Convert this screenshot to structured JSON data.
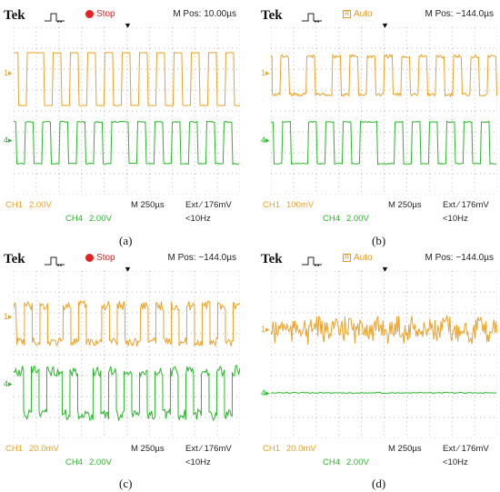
{
  "panels": [
    {
      "id": "a",
      "brand": "Tek",
      "status": "Stop",
      "status_kind": "dot",
      "status_color": "#e32222",
      "mpos": "M Pos: 10.00µs",
      "ch1_label": "CH1",
      "ch1_scale": "2.00V",
      "ch4_label": "CH4",
      "ch4_scale": "2.00V",
      "timebase": "M 250µs",
      "trigger": "Ext ∕ 176mV",
      "freq": "<10Hz",
      "marker1": "1▸",
      "marker4": "4▸",
      "caption": "(a)",
      "ch1_style": "clean",
      "ch4_style": "clean"
    },
    {
      "id": "b",
      "brand": "Tek",
      "status": "Auto",
      "status_kind": "box",
      "status_color": "#e39a1e",
      "status_box_glyph": "R",
      "mpos": "M Pos: −144.0µs",
      "ch1_label": "CH1",
      "ch1_scale": "100mV",
      "ch4_label": "CH4",
      "ch4_scale": "2.00V",
      "timebase": "M 250µs",
      "trigger": "Ext ∕ 176mV",
      "freq": "<10Hz",
      "marker1": "1▸",
      "marker4": "4▸",
      "caption": "(b)",
      "ch1_style": "slightnoise",
      "ch4_style": "clean"
    },
    {
      "id": "c",
      "brand": "Tek",
      "status": "Stop",
      "status_kind": "dot",
      "status_color": "#e32222",
      "mpos": "M Pos: −144.0µs",
      "ch1_label": "CH1",
      "ch1_scale": "20.0mV",
      "ch4_label": "CH4",
      "ch4_scale": "2.00V",
      "timebase": "M 250µs",
      "trigger": "Ext ∕ 176mV",
      "freq": "<10Hz",
      "marker1": "1▸",
      "marker4": "4▸",
      "caption": "(c)",
      "ch1_style": "noisy",
      "ch4_style": "noisy"
    },
    {
      "id": "d",
      "brand": "Tek",
      "status": "Auto",
      "status_kind": "box",
      "status_color": "#e39a1e",
      "status_box_glyph": "R",
      "mpos": "M Pos: −144.0µs",
      "ch1_label": "CH1",
      "ch1_scale": "20.0mV",
      "ch4_label": "CH4",
      "ch4_scale": "2.00V",
      "timebase": "M 250µs",
      "trigger": "Ext ∕ 176mV",
      "freq": "<10Hz",
      "marker1": "1▸",
      "marker4": "4▸",
      "caption": "(d)",
      "ch1_style": "noiseonly",
      "ch4_style": "flat"
    }
  ],
  "colors": {
    "ch1": "#eba22a",
    "ch4": "#2db52d",
    "grid": "#b8b8b8",
    "text": "#222222"
  }
}
